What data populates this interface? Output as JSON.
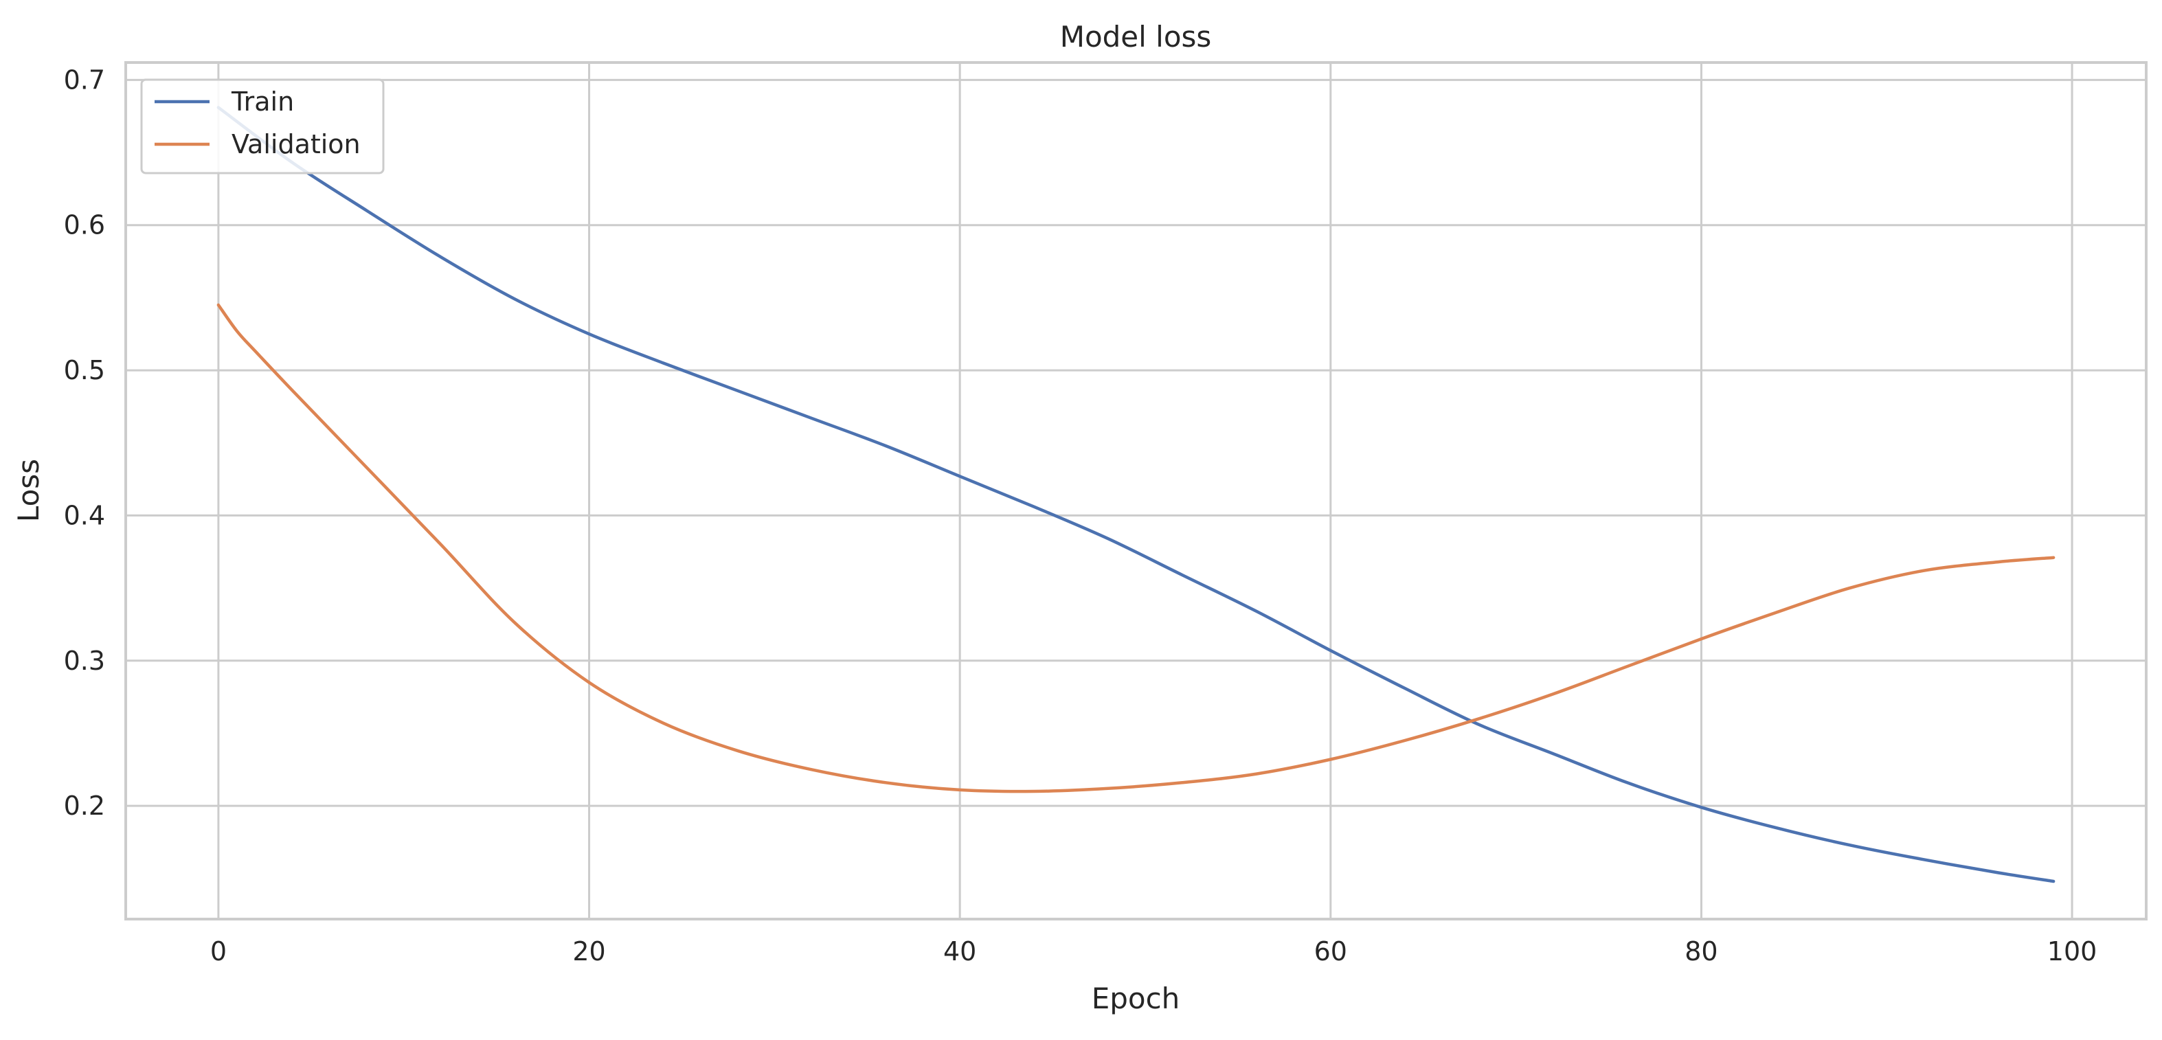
{
  "chart_data": {
    "type": "line",
    "title": "Model loss",
    "xlabel": "Epoch",
    "ylabel": "Loss",
    "xlim": [
      -5,
      104
    ],
    "ylim": [
      0.122,
      0.712
    ],
    "xticks": [
      0,
      20,
      40,
      60,
      80,
      100
    ],
    "yticks": [
      0.2,
      0.3,
      0.4,
      0.5,
      0.6,
      0.7
    ],
    "grid": true,
    "legend_position": "upper left",
    "series": [
      {
        "name": "Train",
        "color": "#4c72b0",
        "x": [
          0,
          4,
          8,
          12,
          16,
          20,
          24,
          28,
          32,
          36,
          40,
          44,
          48,
          52,
          56,
          60,
          64,
          68,
          72,
          76,
          80,
          84,
          88,
          92,
          96,
          99
        ],
        "y": [
          0.681,
          0.643,
          0.61,
          0.578,
          0.549,
          0.525,
          0.505,
          0.486,
          0.467,
          0.448,
          0.427,
          0.406,
          0.384,
          0.359,
          0.334,
          0.307,
          0.281,
          0.256,
          0.236,
          0.216,
          0.199,
          0.185,
          0.173,
          0.163,
          0.154,
          0.148
        ]
      },
      {
        "name": "Validation",
        "color": "#dd8452",
        "x": [
          0,
          1,
          2,
          4,
          8,
          12,
          16,
          20,
          24,
          28,
          32,
          36,
          40,
          44,
          48,
          52,
          56,
          60,
          64,
          68,
          72,
          76,
          80,
          84,
          88,
          92,
          96,
          99
        ],
        "y": [
          0.545,
          0.527,
          0.513,
          0.486,
          0.433,
          0.38,
          0.326,
          0.285,
          0.257,
          0.238,
          0.225,
          0.216,
          0.211,
          0.21,
          0.212,
          0.216,
          0.222,
          0.232,
          0.245,
          0.26,
          0.277,
          0.296,
          0.315,
          0.333,
          0.35,
          0.362,
          0.368,
          0.371
        ]
      }
    ]
  }
}
